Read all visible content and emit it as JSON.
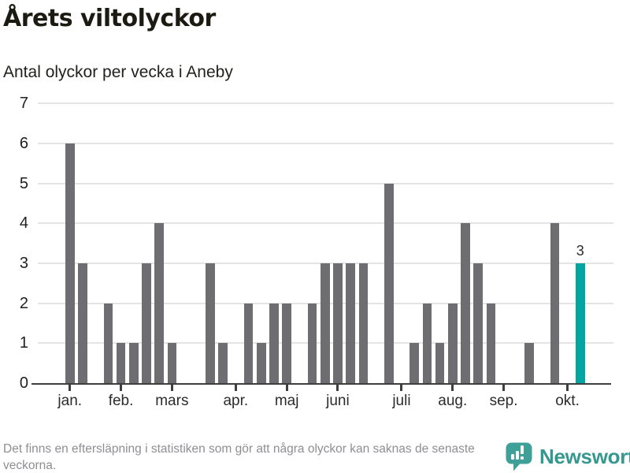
{
  "header": {
    "title": "Årets viltolyckor",
    "subtitle": "Antal olyckor per vecka i Aneby"
  },
  "chart_data": {
    "type": "bar",
    "title": "Årets viltolyckor",
    "subtitle": "Antal olyckor per vecka i Aneby",
    "xlabel": "",
    "ylabel": "",
    "ylim": [
      0,
      7
    ],
    "y_ticks": [
      0,
      1,
      2,
      3,
      4,
      5,
      6,
      7
    ],
    "grid": "horizontal",
    "x_description": "veckor (weeks 1-41 of the year)",
    "values": [
      6,
      3,
      0,
      2,
      1,
      1,
      3,
      4,
      1,
      0,
      0,
      3,
      1,
      0,
      2,
      1,
      2,
      2,
      0,
      2,
      3,
      3,
      3,
      3,
      0,
      5,
      0,
      1,
      2,
      1,
      2,
      4,
      3,
      2,
      0,
      0,
      1,
      0,
      4,
      0,
      3
    ],
    "month_tick_labels": [
      "jan.",
      "feb.",
      "mars",
      "apr.",
      "maj",
      "juni",
      "juli",
      "aug.",
      "sep.",
      "okt."
    ],
    "month_tick_week_index": [
      0,
      4,
      8,
      13,
      17,
      21,
      26,
      30,
      34,
      39
    ],
    "highlight_week_index": 40,
    "highlight_value_label": "3",
    "colors": {
      "bar": "#6d6d72",
      "highlight": "#00a6a0",
      "gridline": "#e4e4e4",
      "axis": "#3f3f3f"
    }
  },
  "footer": {
    "note": "Det finns en eftersläpning i statistiken som gör att några olyckor kan saknas de senaste veckorna.",
    "brand": "Newsworthy",
    "brand_color": "#35988f"
  }
}
